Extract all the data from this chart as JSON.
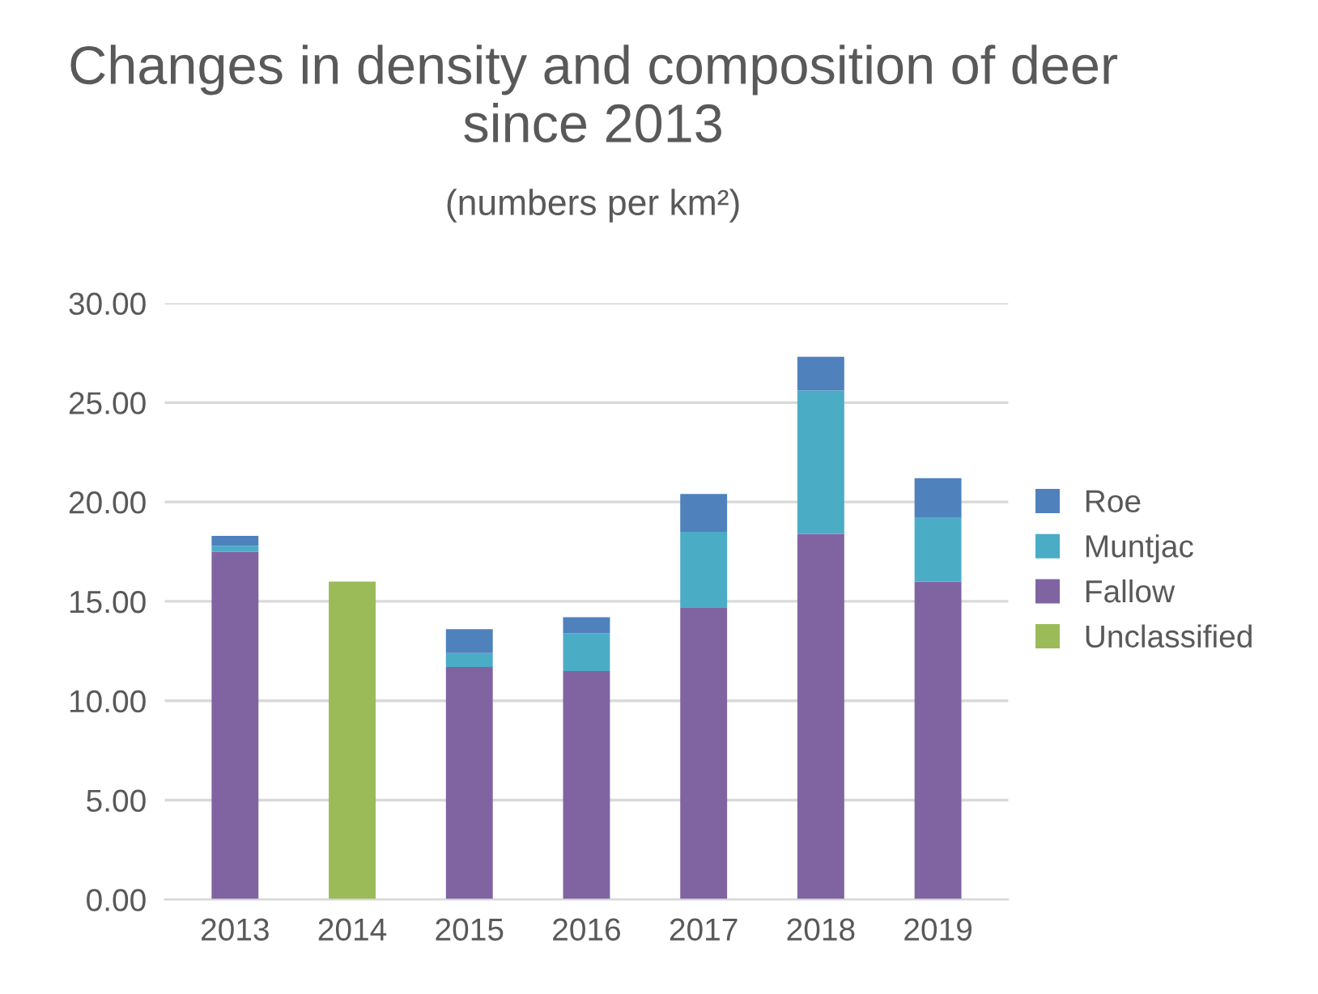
{
  "chart_data": {
    "type": "bar",
    "title": "Changes in density and composition of deer since 2013",
    "subtitle": "(numbers per km²)",
    "categories": [
      "2013",
      "2014",
      "2015",
      "2016",
      "2017",
      "2018",
      "2019"
    ],
    "stacked": true,
    "series": [
      {
        "name": "Unclassified",
        "color": "#9bbb59",
        "values": [
          null,
          16.0,
          null,
          null,
          null,
          null,
          null
        ]
      },
      {
        "name": "Fallow",
        "color": "#8064a2",
        "values": [
          17.5,
          null,
          11.7,
          11.5,
          14.7,
          18.4,
          16.0
        ]
      },
      {
        "name": "Muntjac",
        "color": "#4bacc6",
        "values": [
          0.3,
          null,
          0.7,
          1.9,
          3.8,
          7.2,
          3.2
        ]
      },
      {
        "name": "Roe",
        "color": "#4f81bd",
        "values": [
          0.5,
          null,
          1.2,
          0.8,
          1.9,
          1.7,
          2.0
        ]
      }
    ],
    "ylim": [
      0,
      30
    ],
    "yticks": [
      {
        "value": 0,
        "label": "0.00"
      },
      {
        "value": 5,
        "label": "5.00"
      },
      {
        "value": 10,
        "label": "10.00"
      },
      {
        "value": 15,
        "label": "15.00"
      },
      {
        "value": 20,
        "label": "20.00"
      },
      {
        "value": 25,
        "label": "25.00"
      },
      {
        "value": 30,
        "label": "30.00"
      }
    ],
    "grid": "y",
    "legend": "right"
  }
}
